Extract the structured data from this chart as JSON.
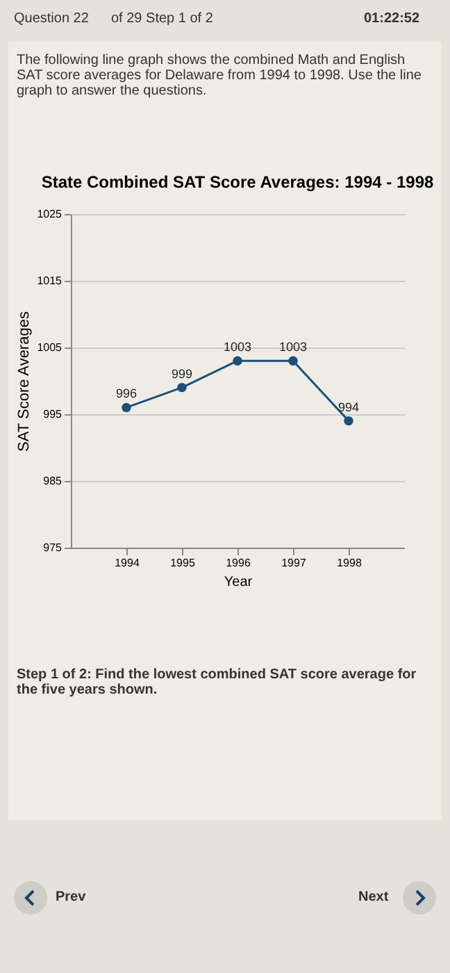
{
  "chart_data": {
    "type": "line",
    "title": "State Combined SAT Score Averages: 1994 - 1998",
    "xlabel": "Year",
    "ylabel": "SAT Score Averages",
    "categories": [
      "1994",
      "1995",
      "1996",
      "1997",
      "1998"
    ],
    "series": [
      {
        "color": "#1f4e79",
        "values": [
          996,
          999,
          1003,
          1003,
          994
        ]
      }
    ],
    "ylim": [
      975,
      1025
    ],
    "yticks": [
      975,
      985,
      995,
      1005,
      1015,
      1025
    ],
    "grid": "y",
    "marker": "circle",
    "data_labels": true,
    "legend": false,
    "annotations": [
      "Question 22",
      "of 29 Step 1 of 2",
      "01:22:52",
      "The following line graph shows the combined Math and English SAT score averages for Delaware from 1994 to 1998. Use the line graph to answer the questions.",
      "Step 1 of 2: Find the lowest combined SAT score average for the five years shown.",
      "Prev",
      "Next"
    ]
  }
}
